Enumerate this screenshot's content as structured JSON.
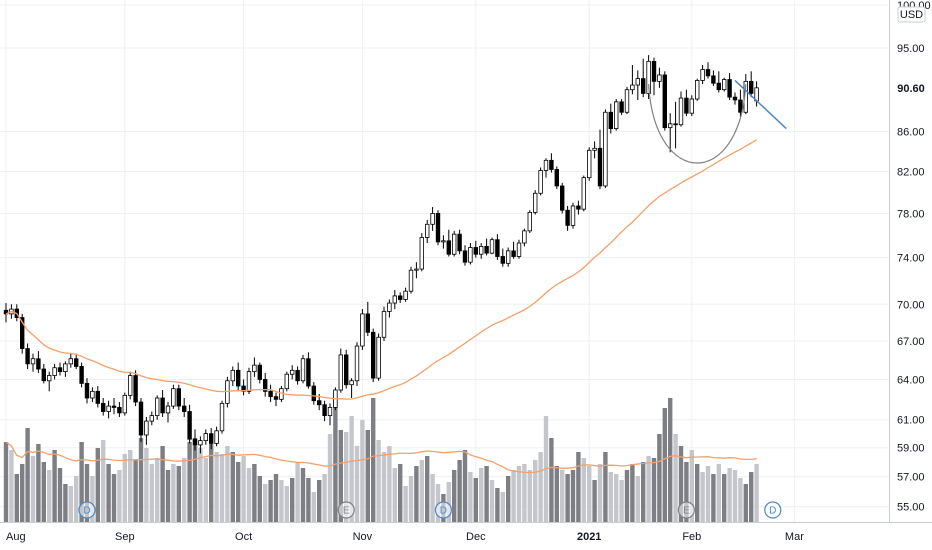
{
  "chart_data": {
    "type": "candlestick",
    "currency": "USD",
    "last_price_label": "90.60",
    "y_scale": "log",
    "ylim": [
      54.0,
      100.0
    ],
    "y_ticks": [
      "100.00",
      "95.00",
      "90.60",
      "86.00",
      "82.00",
      "78.00",
      "74.00",
      "70.00",
      "67.00",
      "64.00",
      "61.00",
      "59.00",
      "57.00",
      "55.00"
    ],
    "x_ticks": [
      "Aug",
      "Sep",
      "Oct",
      "Nov",
      "Dec",
      "2021",
      "Feb",
      "Mar"
    ],
    "x_ticks_bold": [
      "2021"
    ],
    "up_color": "#ffffff",
    "down_color": "#000000",
    "ma_color": "#f5a06a",
    "cup_color": "#808080",
    "trend_color": "#4f87c7",
    "events": [
      "D",
      "E",
      "D",
      "E",
      "D"
    ],
    "candles": [
      [
        69.5,
        70.1,
        68.5,
        69.2
      ],
      [
        69.2,
        70.0,
        68.8,
        69.6
      ],
      [
        69.6,
        70.0,
        68.6,
        68.9
      ],
      [
        68.9,
        69.2,
        66.0,
        66.4
      ],
      [
        66.4,
        66.8,
        64.8,
        65.2
      ],
      [
        65.2,
        66.0,
        64.6,
        65.6
      ],
      [
        65.6,
        66.2,
        64.5,
        64.8
      ],
      [
        64.8,
        65.2,
        63.7,
        63.9
      ],
      [
        63.9,
        64.6,
        63.1,
        64.3
      ],
      [
        64.3,
        65.2,
        64.0,
        64.9
      ],
      [
        64.9,
        65.3,
        64.3,
        64.6
      ],
      [
        64.6,
        65.4,
        64.2,
        65.2
      ],
      [
        65.2,
        66.0,
        64.9,
        65.6
      ],
      [
        65.6,
        66.0,
        64.8,
        65.0
      ],
      [
        65.0,
        65.3,
        63.4,
        63.7
      ],
      [
        63.7,
        64.1,
        62.2,
        62.6
      ],
      [
        62.6,
        63.4,
        62.3,
        63.1
      ],
      [
        63.1,
        63.5,
        61.9,
        62.2
      ],
      [
        62.2,
        62.6,
        61.3,
        61.6
      ],
      [
        61.6,
        62.4,
        61.1,
        62.0
      ],
      [
        62.0,
        62.6,
        61.4,
        61.9
      ],
      [
        61.9,
        62.3,
        61.2,
        61.5
      ],
      [
        61.5,
        63.0,
        61.3,
        62.8
      ],
      [
        62.8,
        64.6,
        62.5,
        64.3
      ],
      [
        64.3,
        64.7,
        62.0,
        62.3
      ],
      [
        62.3,
        62.6,
        59.4,
        59.9
      ],
      [
        59.9,
        61.2,
        59.2,
        60.9
      ],
      [
        60.9,
        61.6,
        60.6,
        61.3
      ],
      [
        61.3,
        62.8,
        61.0,
        62.6
      ],
      [
        62.6,
        63.2,
        61.2,
        61.5
      ],
      [
        61.5,
        62.3,
        60.8,
        62.0
      ],
      [
        62.0,
        63.6,
        61.8,
        63.3
      ],
      [
        63.3,
        63.6,
        61.7,
        62.0
      ],
      [
        62.0,
        62.6,
        61.2,
        61.6
      ],
      [
        61.6,
        62.1,
        59.3,
        59.6
      ],
      [
        59.6,
        60.3,
        58.8,
        59.2
      ],
      [
        59.2,
        59.8,
        58.6,
        59.5
      ],
      [
        59.5,
        60.3,
        59.2,
        60.0
      ],
      [
        60.0,
        60.4,
        58.9,
        59.3
      ],
      [
        59.3,
        60.5,
        59.1,
        60.2
      ],
      [
        60.2,
        62.4,
        60.0,
        62.2
      ],
      [
        62.2,
        64.2,
        61.9,
        63.9
      ],
      [
        63.9,
        65.0,
        63.5,
        64.7
      ],
      [
        64.7,
        65.3,
        63.2,
        63.5
      ],
      [
        63.5,
        64.0,
        62.8,
        63.1
      ],
      [
        63.1,
        64.9,
        62.9,
        64.6
      ],
      [
        64.6,
        65.7,
        64.2,
        65.1
      ],
      [
        65.1,
        65.3,
        63.7,
        64.0
      ],
      [
        64.0,
        64.5,
        62.7,
        63.1
      ],
      [
        63.1,
        63.6,
        62.3,
        62.7
      ],
      [
        62.7,
        63.0,
        62.0,
        62.5
      ],
      [
        62.5,
        63.5,
        62.3,
        63.3
      ],
      [
        63.3,
        64.6,
        63.1,
        64.4
      ],
      [
        64.4,
        65.1,
        64.0,
        64.7
      ],
      [
        64.7,
        65.0,
        63.6,
        63.9
      ],
      [
        63.9,
        65.9,
        63.7,
        65.6
      ],
      [
        65.6,
        66.1,
        63.3,
        63.5
      ],
      [
        63.5,
        63.8,
        62.1,
        62.4
      ],
      [
        62.4,
        62.9,
        61.7,
        62.1
      ],
      [
        62.1,
        62.4,
        60.9,
        61.3
      ],
      [
        61.3,
        62.2,
        60.6,
        61.9
      ],
      [
        61.9,
        63.4,
        61.7,
        63.2
      ],
      [
        63.2,
        66.4,
        63.0,
        65.9
      ],
      [
        65.9,
        66.3,
        63.3,
        63.6
      ],
      [
        63.6,
        64.1,
        62.6,
        63.9
      ],
      [
        63.9,
        66.9,
        63.5,
        66.6
      ],
      [
        66.6,
        69.6,
        66.3,
        69.2
      ],
      [
        69.2,
        70.2,
        67.4,
        67.7
      ],
      [
        67.7,
        68.0,
        63.8,
        64.1
      ],
      [
        64.1,
        67.6,
        63.9,
        67.3
      ],
      [
        67.3,
        69.8,
        67.0,
        69.4
      ],
      [
        69.4,
        70.4,
        68.9,
        70.1
      ],
      [
        70.1,
        71.2,
        69.6,
        70.7
      ],
      [
        70.7,
        71.0,
        70.1,
        70.4
      ],
      [
        70.4,
        71.4,
        70.2,
        71.1
      ],
      [
        71.1,
        73.2,
        70.9,
        72.9
      ],
      [
        72.9,
        73.6,
        72.2,
        73.0
      ],
      [
        73.0,
        76.2,
        72.8,
        75.8
      ],
      [
        75.8,
        77.4,
        75.3,
        77.0
      ],
      [
        77.0,
        78.6,
        76.4,
        78.0
      ],
      [
        78.0,
        78.3,
        75.1,
        75.4
      ],
      [
        75.4,
        76.0,
        74.8,
        75.5
      ],
      [
        75.5,
        76.5,
        74.1,
        74.3
      ],
      [
        74.3,
        76.4,
        74.1,
        76.1
      ],
      [
        76.1,
        76.5,
        74.3,
        74.6
      ],
      [
        74.6,
        75.1,
        73.3,
        73.6
      ],
      [
        73.6,
        75.3,
        73.4,
        74.9
      ],
      [
        74.9,
        75.5,
        74.0,
        74.3
      ],
      [
        74.3,
        75.3,
        73.9,
        75.0
      ],
      [
        75.0,
        75.7,
        74.2,
        74.4
      ],
      [
        74.4,
        75.8,
        74.3,
        75.6
      ],
      [
        75.6,
        76.1,
        73.8,
        74.1
      ],
      [
        74.1,
        74.8,
        73.2,
        73.5
      ],
      [
        73.5,
        74.9,
        73.2,
        74.6
      ],
      [
        74.6,
        75.4,
        73.9,
        74.1
      ],
      [
        74.1,
        75.6,
        73.9,
        75.3
      ],
      [
        75.3,
        76.6,
        75.0,
        76.4
      ],
      [
        76.4,
        78.3,
        76.2,
        78.1
      ],
      [
        78.1,
        80.2,
        77.9,
        79.9
      ],
      [
        79.9,
        82.4,
        79.7,
        82.1
      ],
      [
        82.1,
        83.3,
        81.4,
        83.1
      ],
      [
        83.1,
        83.8,
        81.9,
        82.2
      ],
      [
        82.2,
        82.5,
        80.3,
        80.6
      ],
      [
        80.6,
        80.9,
        78.0,
        78.3
      ],
      [
        78.3,
        78.7,
        76.4,
        76.9
      ],
      [
        76.9,
        79.0,
        76.6,
        78.7
      ],
      [
        78.7,
        79.2,
        77.9,
        78.4
      ],
      [
        78.4,
        81.6,
        78.2,
        81.4
      ],
      [
        81.4,
        84.4,
        81.1,
        84.1
      ],
      [
        84.1,
        85.0,
        83.3,
        84.3
      ],
      [
        84.3,
        86.2,
        80.3,
        80.6
      ],
      [
        80.6,
        88.3,
        80.4,
        88.0
      ],
      [
        88.0,
        88.9,
        85.8,
        86.3
      ],
      [
        86.3,
        89.4,
        86.1,
        89.1
      ],
      [
        89.1,
        89.4,
        87.7,
        88.0
      ],
      [
        88.0,
        90.7,
        87.8,
        90.4
      ],
      [
        90.4,
        93.1,
        89.9,
        90.9
      ],
      [
        90.9,
        92.5,
        89.3,
        91.6
      ],
      [
        91.6,
        93.8,
        89.6,
        90.0
      ],
      [
        90.0,
        94.2,
        89.4,
        93.5
      ],
      [
        93.5,
        93.9,
        89.8,
        91.3
      ],
      [
        91.3,
        92.8,
        90.6,
        92.0
      ],
      [
        92.0,
        92.4,
        86.1,
        86.4
      ],
      [
        86.4,
        87.9,
        83.9,
        86.8
      ],
      [
        86.8,
        89.1,
        84.3,
        86.7
      ],
      [
        86.7,
        90.2,
        86.5,
        89.5
      ],
      [
        89.5,
        90.4,
        87.6,
        87.9
      ],
      [
        87.9,
        89.8,
        87.6,
        89.4
      ],
      [
        89.4,
        91.6,
        89.2,
        91.4
      ],
      [
        91.4,
        93.1,
        91.0,
        92.6
      ],
      [
        92.6,
        93.4,
        91.6,
        91.9
      ],
      [
        91.9,
        92.5,
        90.8,
        91.1
      ],
      [
        91.1,
        92.4,
        90.1,
        90.4
      ],
      [
        90.4,
        91.7,
        90.2,
        91.5
      ],
      [
        91.5,
        92.2,
        89.3,
        89.6
      ],
      [
        89.6,
        90.1,
        88.8,
        89.3
      ],
      [
        89.3,
        90.4,
        87.5,
        88.0
      ],
      [
        88.0,
        92.1,
        87.8,
        91.3
      ],
      [
        91.3,
        92.4,
        89.6,
        90.0
      ],
      [
        89.2,
        91.3,
        88.6,
        90.6
      ]
    ],
    "volume": [
      [
        40,
        "down"
      ],
      [
        36,
        "up"
      ],
      [
        24,
        "down"
      ],
      [
        29,
        "down"
      ],
      [
        47,
        "down"
      ],
      [
        33,
        "up"
      ],
      [
        39,
        "down"
      ],
      [
        30,
        "down"
      ],
      [
        26,
        "up"
      ],
      [
        36,
        "down"
      ],
      [
        27,
        "down"
      ],
      [
        19,
        "down"
      ],
      [
        18,
        "up"
      ],
      [
        23,
        "up"
      ],
      [
        40,
        "down"
      ],
      [
        29,
        "down"
      ],
      [
        23,
        "up"
      ],
      [
        37,
        "down"
      ],
      [
        41,
        "up"
      ],
      [
        29,
        "down"
      ],
      [
        24,
        "down"
      ],
      [
        26,
        "up"
      ],
      [
        34,
        "up"
      ],
      [
        36,
        "up"
      ],
      [
        31,
        "down"
      ],
      [
        42,
        "down"
      ],
      [
        37,
        "up"
      ],
      [
        29,
        "up"
      ],
      [
        32,
        "up"
      ],
      [
        38,
        "down"
      ],
      [
        26,
        "down"
      ],
      [
        29,
        "up"
      ],
      [
        28,
        "down"
      ],
      [
        32,
        "up"
      ],
      [
        40,
        "down"
      ],
      [
        42,
        "down"
      ],
      [
        37,
        "up"
      ],
      [
        32,
        "up"
      ],
      [
        39,
        "down"
      ],
      [
        35,
        "up"
      ],
      [
        34,
        "up"
      ],
      [
        38,
        "up"
      ],
      [
        35,
        "down"
      ],
      [
        30,
        "down"
      ],
      [
        33,
        "up"
      ],
      [
        27,
        "up"
      ],
      [
        29,
        "down"
      ],
      [
        23,
        "down"
      ],
      [
        19,
        "up"
      ],
      [
        21,
        "down"
      ],
      [
        24,
        "down"
      ],
      [
        21,
        "up"
      ],
      [
        18,
        "up"
      ],
      [
        22,
        "down"
      ],
      [
        30,
        "up"
      ],
      [
        27,
        "down"
      ],
      [
        22,
        "down"
      ],
      [
        15,
        "up"
      ],
      [
        21,
        "down"
      ],
      [
        24,
        "up"
      ],
      [
        44,
        "up"
      ],
      [
        61,
        "down"
      ],
      [
        46,
        "down"
      ],
      [
        45,
        "up"
      ],
      [
        53,
        "up"
      ],
      [
        38,
        "up"
      ],
      [
        51,
        "up"
      ],
      [
        46,
        "down"
      ],
      [
        62,
        "down"
      ],
      [
        41,
        "up"
      ],
      [
        35,
        "up"
      ],
      [
        38,
        "up"
      ],
      [
        27,
        "up"
      ],
      [
        29,
        "down"
      ],
      [
        18,
        "up"
      ],
      [
        23,
        "up"
      ],
      [
        28,
        "down"
      ],
      [
        31,
        "up"
      ],
      [
        33,
        "down"
      ],
      [
        24,
        "up"
      ],
      [
        19,
        "up"
      ],
      [
        14,
        "down"
      ],
      [
        20,
        "up"
      ],
      [
        26,
        "down"
      ],
      [
        31,
        "down"
      ],
      [
        36,
        "down"
      ],
      [
        25,
        "up"
      ],
      [
        22,
        "down"
      ],
      [
        27,
        "up"
      ],
      [
        28,
        "down"
      ],
      [
        21,
        "up"
      ],
      [
        17,
        "down"
      ],
      [
        15,
        "up"
      ],
      [
        23,
        "down"
      ],
      [
        26,
        "up"
      ],
      [
        28,
        "up"
      ],
      [
        29,
        "up"
      ],
      [
        26,
        "up"
      ],
      [
        31,
        "up"
      ],
      [
        35,
        "up"
      ],
      [
        53,
        "up"
      ],
      [
        42,
        "down"
      ],
      [
        28,
        "down"
      ],
      [
        26,
        "up"
      ],
      [
        24,
        "down"
      ],
      [
        26,
        "down"
      ],
      [
        35,
        "down"
      ],
      [
        32,
        "up"
      ],
      [
        28,
        "up"
      ],
      [
        21,
        "down"
      ],
      [
        29,
        "up"
      ],
      [
        35,
        "down"
      ],
      [
        25,
        "up"
      ],
      [
        24,
        "up"
      ],
      [
        21,
        "up"
      ],
      [
        26,
        "down"
      ],
      [
        29,
        "down"
      ],
      [
        23,
        "up"
      ],
      [
        30,
        "down"
      ],
      [
        33,
        "up"
      ],
      [
        32,
        "down"
      ],
      [
        44,
        "down"
      ],
      [
        57,
        "down"
      ],
      [
        62,
        "down"
      ],
      [
        44,
        "up"
      ],
      [
        38,
        "down"
      ],
      [
        30,
        "down"
      ],
      [
        36,
        "up"
      ],
      [
        29,
        "down"
      ],
      [
        25,
        "up"
      ],
      [
        28,
        "up"
      ],
      [
        24,
        "down"
      ],
      [
        29,
        "up"
      ],
      [
        24,
        "down"
      ],
      [
        27,
        "up"
      ],
      [
        26,
        "up"
      ],
      [
        22,
        "up"
      ],
      [
        19,
        "down"
      ],
      [
        25,
        "down"
      ],
      [
        29,
        "up"
      ]
    ]
  }
}
